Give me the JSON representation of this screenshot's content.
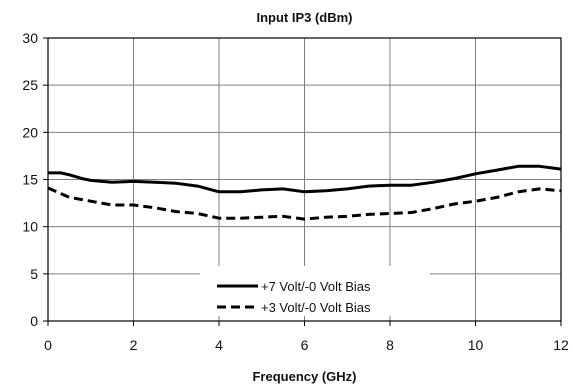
{
  "chart_data": {
    "type": "line",
    "title": "Input IP3 (dBm)",
    "xlabel": "Frequency (GHz)",
    "ylabel": "",
    "xlim": [
      0,
      12
    ],
    "ylim": [
      0,
      30
    ],
    "xticks": [
      0,
      2,
      4,
      6,
      8,
      10,
      12
    ],
    "yticks": [
      0,
      5,
      10,
      15,
      20,
      25,
      30
    ],
    "grid": true,
    "legend_position": "bottom-center",
    "colors": {
      "line": "#000000",
      "grid": "#7f7f7f",
      "axis": "#000000"
    },
    "series": [
      {
        "name": "+7 Volt/-0 Volt Bias",
        "style": "solid",
        "x": [
          0,
          0.3,
          0.5,
          0.8,
          1.0,
          1.5,
          2.0,
          2.5,
          3.0,
          3.5,
          4.0,
          4.5,
          5.0,
          5.5,
          6.0,
          6.5,
          7.0,
          7.5,
          8.0,
          8.5,
          9.0,
          9.5,
          10.0,
          10.5,
          11.0,
          11.5,
          12.0
        ],
        "y": [
          15.7,
          15.7,
          15.5,
          15.1,
          14.9,
          14.7,
          14.8,
          14.7,
          14.6,
          14.3,
          13.7,
          13.7,
          13.9,
          14.0,
          13.7,
          13.8,
          14.0,
          14.3,
          14.4,
          14.4,
          14.7,
          15.1,
          15.6,
          16.0,
          16.4,
          16.4,
          16.1
        ]
      },
      {
        "name": "+3 Volt/-0 Volt Bias",
        "style": "dashed",
        "x": [
          0,
          0.3,
          0.5,
          1.0,
          1.5,
          2.0,
          2.5,
          3.0,
          3.5,
          4.0,
          4.5,
          5.0,
          5.5,
          6.0,
          6.5,
          7.0,
          7.5,
          8.0,
          8.5,
          9.0,
          9.5,
          10.0,
          10.5,
          11.0,
          11.5,
          12.0
        ],
        "y": [
          14.1,
          13.5,
          13.1,
          12.7,
          12.3,
          12.3,
          12.0,
          11.6,
          11.4,
          10.9,
          10.9,
          11.0,
          11.1,
          10.8,
          11.0,
          11.1,
          11.3,
          11.4,
          11.5,
          11.9,
          12.4,
          12.7,
          13.1,
          13.7,
          14.0,
          13.8
        ]
      }
    ]
  }
}
